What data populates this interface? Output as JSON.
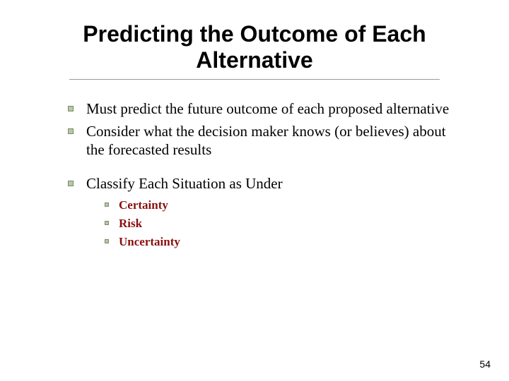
{
  "title": "Predicting the Outcome of Each Alternative",
  "title_fontsize": 32,
  "title_color": "#000000",
  "bullets": [
    {
      "text": "Must predict the future outcome of each proposed alternative",
      "gap": false
    },
    {
      "text": "Consider what the decision maker knows (or believes) about the forecasted results",
      "gap": false
    },
    {
      "text": "Classify Each Situation as Under",
      "gap": true
    }
  ],
  "bullet_fontsize": 21,
  "bullet_color": "#000000",
  "sub_bullets": [
    "Certainty",
    "Risk",
    "Uncertainty"
  ],
  "sub_bullet_fontsize": 17,
  "sub_bullet_color": "#8a0f0f",
  "bullet_square_fill": "#b8c7a6",
  "bullet_square_border": "#7a8a68",
  "underline_color": "#999999",
  "page_number": "54",
  "page_number_fontsize": 14,
  "background_color": "#ffffff",
  "slide_width": 720,
  "slide_height": 540
}
